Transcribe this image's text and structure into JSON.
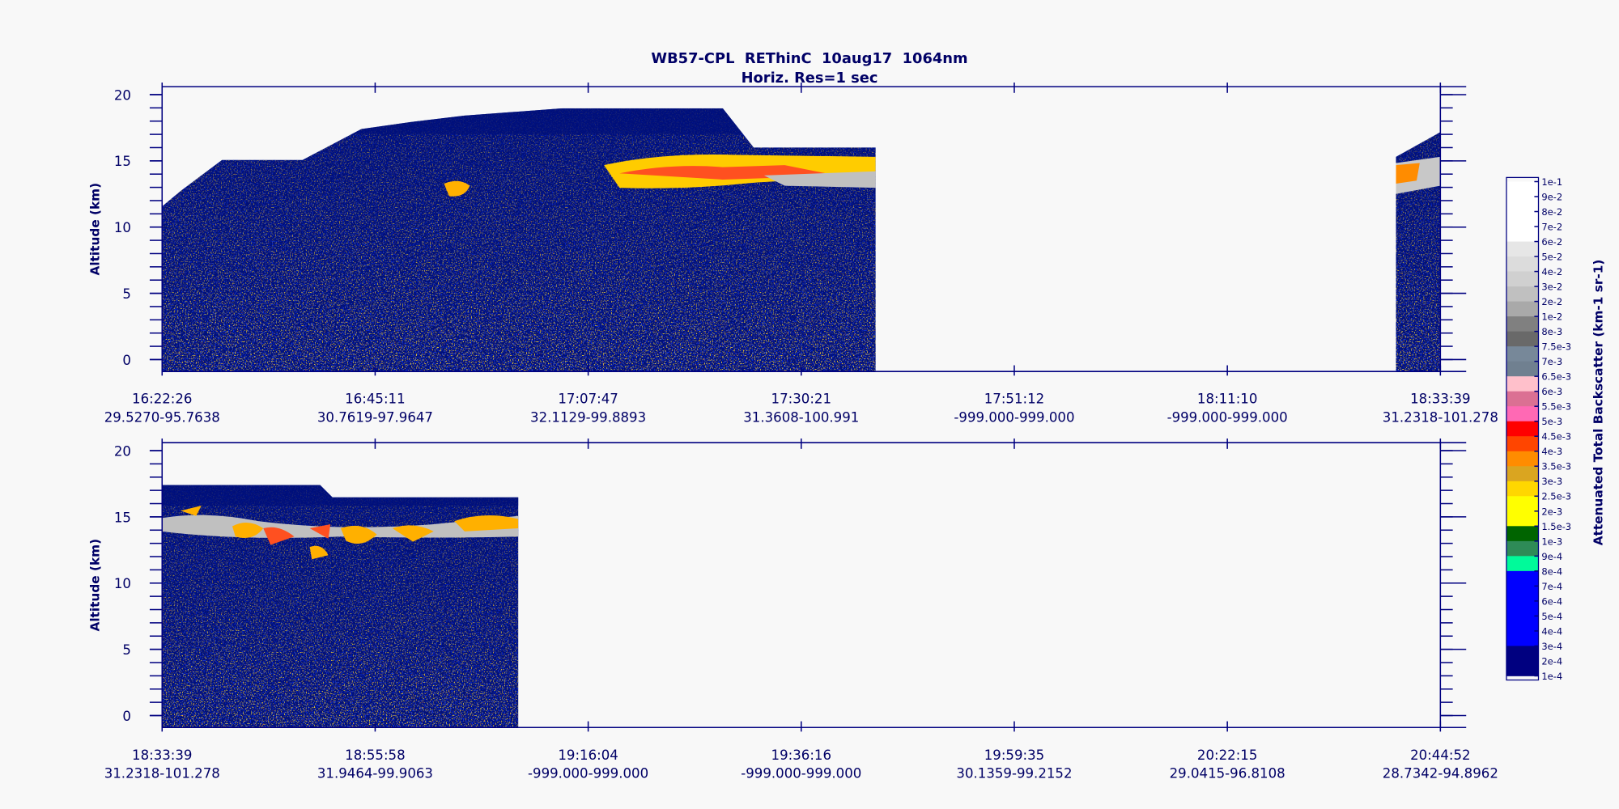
{
  "title": "WB57-CPL  REThinC  10aug17  1064nm",
  "subtitle": "Horiz. Res=1 sec",
  "colorbar": {
    "label": "Attenuated Total Backscatter (km-1 sr-1)",
    "ticks": [
      {
        "value": 0.1,
        "label": "1e-1"
      },
      {
        "value": 0.09,
        "label": "9e-2"
      },
      {
        "value": 0.08,
        "label": "8e-2"
      },
      {
        "value": 0.07,
        "label": "7e-2"
      },
      {
        "value": 0.06,
        "label": "6e-2"
      },
      {
        "value": 0.05,
        "label": "5e-2"
      },
      {
        "value": 0.04,
        "label": "4e-2"
      },
      {
        "value": 0.03,
        "label": "3e-2"
      },
      {
        "value": 0.02,
        "label": "2e-2"
      },
      {
        "value": 0.01,
        "label": "1e-2"
      },
      {
        "value": 0.008,
        "label": "8e-3"
      },
      {
        "value": 0.0075,
        "label": "7.5e-3"
      },
      {
        "value": 0.007,
        "label": "7e-3"
      },
      {
        "value": 0.0065,
        "label": "6.5e-3"
      },
      {
        "value": 0.006,
        "label": "6e-3"
      },
      {
        "value": 0.0055,
        "label": "5.5e-3"
      },
      {
        "value": 0.005,
        "label": "5e-3"
      },
      {
        "value": 0.0045,
        "label": "4.5e-3"
      },
      {
        "value": 0.004,
        "label": "4e-3"
      },
      {
        "value": 0.0035,
        "label": "3.5e-3"
      },
      {
        "value": 0.003,
        "label": "3e-3"
      },
      {
        "value": 0.0025,
        "label": "2.5e-3"
      },
      {
        "value": 0.002,
        "label": "2e-3"
      },
      {
        "value": 0.0015,
        "label": "1.5e-3"
      },
      {
        "value": 0.001,
        "label": "1e-3"
      },
      {
        "value": 0.0009,
        "label": "9e-4"
      },
      {
        "value": 0.0008,
        "label": "8e-4"
      },
      {
        "value": 0.0007,
        "label": "7e-4"
      },
      {
        "value": 0.0006,
        "label": "6e-4"
      },
      {
        "value": 0.0005,
        "label": "5e-4"
      },
      {
        "value": 0.0004,
        "label": "4e-4"
      },
      {
        "value": 0.0003,
        "label": "3e-4"
      },
      {
        "value": 0.0002,
        "label": "2e-4"
      },
      {
        "value": 0.0001,
        "label": "1e-4"
      }
    ],
    "colors": [
      "#ffffff",
      "#ffffff",
      "#ffffff",
      "#ffffff",
      "#e6e6e6",
      "#dcdcdc",
      "#d0d0d0",
      "#c0c0c0",
      "#a9a9a9",
      "#808080",
      "#696969",
      "#778899",
      "#708090",
      "#ffc0cb",
      "#db7093",
      "#ff69b4",
      "#ff0000",
      "#ff4500",
      "#ff8c00",
      "#daa520",
      "#ffd700",
      "#ffff00",
      "#ffff00",
      "#006400",
      "#2e8b57",
      "#00fa9a",
      "#0000ff",
      "#0000ff",
      "#0000ff",
      "#0000ff",
      "#0000ff",
      "#000080",
      "#000080"
    ]
  },
  "chart_data": [
    {
      "type": "heatmap",
      "ylabel": "Altitude (km)",
      "ylim": [
        -0.9,
        20.6
      ],
      "yticks": [
        0,
        5,
        10,
        15,
        20
      ],
      "categories": [
        "16:22:26",
        "16:45:11",
        "17:07:47",
        "17:30:21",
        "17:51:12",
        "18:11:10",
        "18:33:39"
      ],
      "positions": [
        "29.5270-95.7638",
        "30.7619-97.9647",
        "32.1129-99.8893",
        "31.3608-100.991",
        "-999.000-999.000",
        "-999.000-999.000",
        "31.2318-101.278"
      ]
    },
    {
      "type": "heatmap",
      "ylabel": "Altitude (km)",
      "ylim": [
        -0.9,
        20.6
      ],
      "yticks": [
        0,
        5,
        10,
        15,
        20
      ],
      "categories": [
        "18:33:39",
        "18:55:58",
        "19:16:04",
        "19:36:16",
        "19:59:35",
        "20:22:15",
        "20:44:52"
      ],
      "positions": [
        "31.2318-101.278",
        "31.9464-99.9063",
        "-999.000-999.000",
        "-999.000-999.000",
        "30.1359-99.2152",
        "29.0415-96.8108",
        "28.7342-94.8962"
      ]
    }
  ]
}
